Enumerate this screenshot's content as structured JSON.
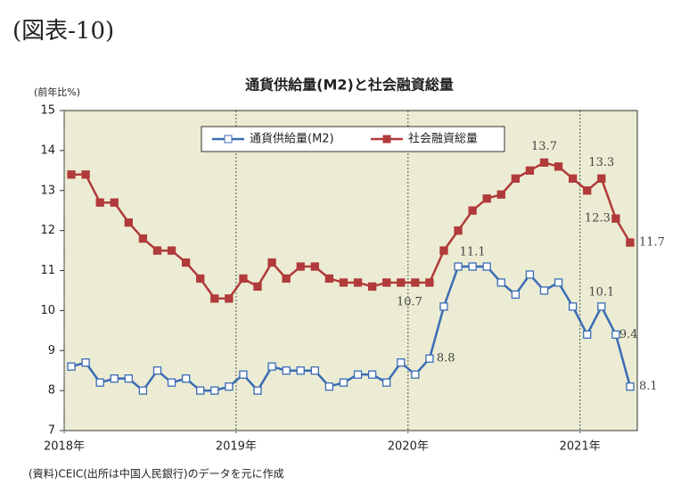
{
  "heading": "(図表-10)",
  "chart_data": {
    "type": "line",
    "title": "通貨供給量(M2)と社会融資総量",
    "y_label": "(前年比%)",
    "source": "(資料)CEIC(出所は中国人民銀行)のデータを元に作成",
    "x": [
      0.5,
      1.5,
      2.5,
      3.5,
      4.5,
      5.5,
      6.5,
      7.5,
      8.5,
      9.5,
      10.5,
      11.5,
      12.5,
      13.5,
      14.5,
      15.5,
      16.5,
      17.5,
      18.5,
      19.5,
      20.5,
      21.5,
      22.5,
      23.5,
      24.5,
      25.5,
      26.5,
      27.5,
      28.5,
      29.5,
      30.5,
      31.5,
      32.5,
      33.5,
      34.5,
      35.5,
      36.5,
      37.5,
      38.5,
      39.5
    ],
    "xlim": [
      0,
      40
    ],
    "xticks": [
      {
        "value": 0,
        "label": "2018年"
      },
      {
        "value": 12,
        "label": "2019年"
      },
      {
        "value": 24,
        "label": "2020年"
      },
      {
        "value": 36,
        "label": "2021年"
      }
    ],
    "ylim": [
      7,
      15
    ],
    "yticks": [
      7,
      8,
      9,
      10,
      11,
      12,
      13,
      14,
      15
    ],
    "legend": "top",
    "series": [
      {
        "name": "通貨供給量(M2)",
        "color": "#3a6bb5",
        "values": [
          8.6,
          8.7,
          8.2,
          8.3,
          8.3,
          8.0,
          8.5,
          8.2,
          8.3,
          8.0,
          8.0,
          8.1,
          8.4,
          8.0,
          8.6,
          8.5,
          8.5,
          8.5,
          8.1,
          8.2,
          8.4,
          8.4,
          8.2,
          8.7,
          8.4,
          8.8,
          10.1,
          11.1,
          11.1,
          11.1,
          10.7,
          10.4,
          10.9,
          10.5,
          10.7,
          10.1,
          9.4,
          10.1,
          9.4,
          8.1
        ],
        "value_labels": [
          null,
          null,
          null,
          null,
          null,
          null,
          null,
          null,
          null,
          null,
          null,
          null,
          null,
          null,
          null,
          null,
          null,
          null,
          null,
          null,
          null,
          null,
          null,
          null,
          null,
          "8.8",
          null,
          null,
          "11.1",
          null,
          null,
          null,
          null,
          null,
          null,
          null,
          null,
          "10.1",
          "9.4",
          "8.1"
        ]
      },
      {
        "name": "社会融資総量",
        "color": "#b13a3a",
        "values": [
          13.4,
          13.4,
          12.7,
          12.7,
          12.2,
          11.8,
          11.5,
          11.5,
          11.2,
          10.8,
          10.3,
          10.3,
          10.8,
          10.6,
          11.2,
          10.8,
          11.1,
          11.1,
          10.8,
          10.7,
          10.7,
          10.6,
          10.7,
          10.7,
          10.7,
          10.7,
          11.5,
          12.0,
          12.5,
          12.8,
          12.9,
          13.3,
          13.5,
          13.7,
          13.6,
          13.3,
          13.0,
          13.3,
          12.3,
          11.7
        ],
        "value_labels": [
          null,
          null,
          null,
          null,
          null,
          null,
          null,
          null,
          null,
          null,
          null,
          null,
          null,
          null,
          null,
          null,
          null,
          null,
          null,
          null,
          null,
          null,
          null,
          null,
          null,
          "10.7",
          null,
          null,
          null,
          null,
          null,
          null,
          null,
          "13.7",
          null,
          null,
          null,
          "13.3",
          "12.3",
          "11.7"
        ]
      }
    ]
  }
}
